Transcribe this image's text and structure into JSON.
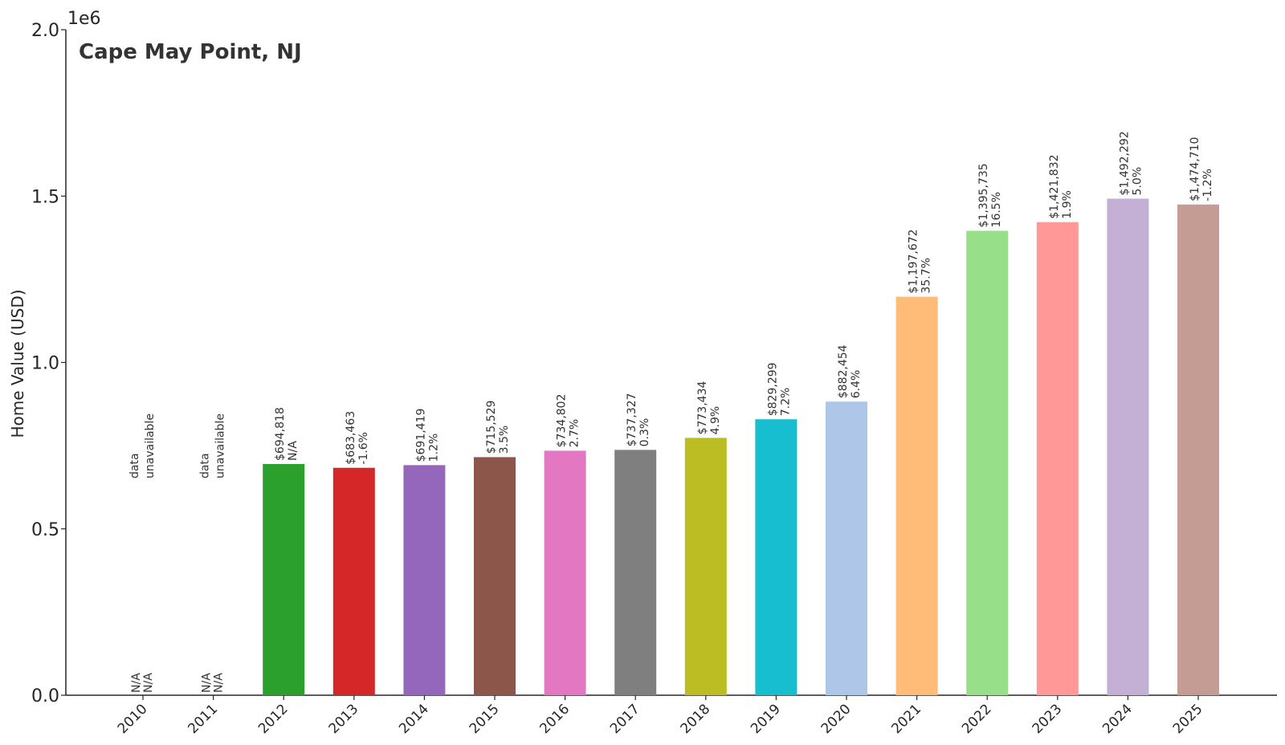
{
  "chart_data": {
    "type": "bar",
    "title": "Cape May Point, NJ",
    "ylabel": "Home Value (USD)",
    "xlabel": "",
    "y_scale_label": "1e6",
    "ylim": [
      0,
      2000000
    ],
    "yticks": [
      0,
      500000,
      1000000,
      1500000,
      2000000
    ],
    "ytick_labels": [
      "0.0",
      "0.5",
      "1.0",
      "1.5",
      "2.0"
    ],
    "categories": [
      "2010",
      "2011",
      "2012",
      "2013",
      "2014",
      "2015",
      "2016",
      "2017",
      "2018",
      "2019",
      "2020",
      "2021",
      "2022",
      "2023",
      "2024",
      "2025"
    ],
    "values": [
      null,
      null,
      694818,
      683463,
      691419,
      715529,
      734802,
      737327,
      773434,
      829299,
      882454,
      1197672,
      1395735,
      1421832,
      1492292,
      1474710
    ],
    "value_labels": [
      "",
      "",
      "$694,818",
      "$683,463",
      "$691,419",
      "$715,529",
      "$734,802",
      "$737,327",
      "$773,434",
      "$829,299",
      "$882,454",
      "$1,197,672",
      "$1,395,735",
      "$1,421,832",
      "$1,492,292",
      "$1,474,710"
    ],
    "change_labels": [
      "N/A",
      "N/A",
      "N/A",
      "-1.6%",
      "1.2%",
      "3.5%",
      "2.7%",
      "0.3%",
      "4.9%",
      "7.2%",
      "6.4%",
      "35.7%",
      "16.5%",
      "1.9%",
      "5.0%",
      "-1.2%"
    ],
    "missing_label": [
      "data",
      "unavailable"
    ],
    "colors": [
      "#1f77b4",
      "#ff7f0e",
      "#2ca02c",
      "#d62728",
      "#9467bd",
      "#8c564b",
      "#e377c2",
      "#7f7f7f",
      "#bcbd22",
      "#17becf",
      "#aec7e8",
      "#ffbb78",
      "#98df8a",
      "#ff9896",
      "#c5b0d5",
      "#c49c94"
    ],
    "grid": false,
    "legend": "none"
  }
}
